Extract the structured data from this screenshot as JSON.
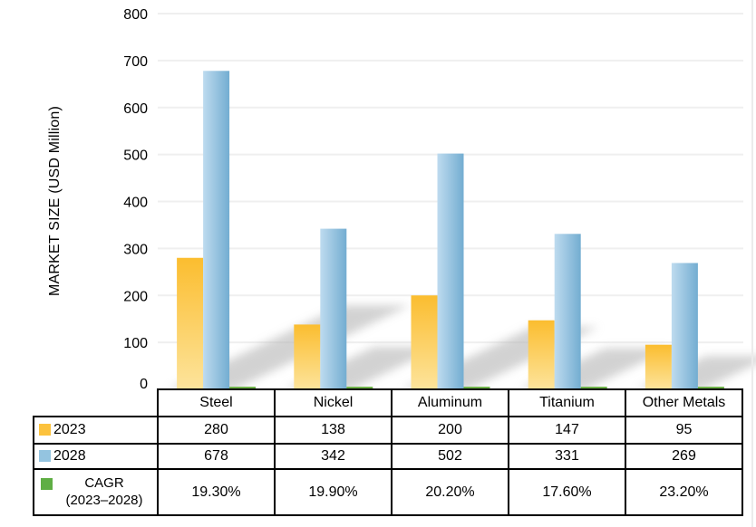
{
  "chart_data": {
    "type": "bar",
    "title": "",
    "xlabel": "",
    "ylabel": "MARKET SIZE (USD Million)",
    "categories": [
      "Steel",
      "Nickel",
      "Aluminum",
      "Titanium",
      "Other Metals"
    ],
    "series": [
      {
        "name": "2023",
        "values": [
          280,
          138,
          200,
          147,
          95
        ]
      },
      {
        "name": "2028",
        "values": [
          678,
          342,
          502,
          331,
          269
        ]
      },
      {
        "name": "CAGR (2023–2028)",
        "values_percent": [
          19.3,
          19.9,
          20.2,
          17.6,
          23.2
        ],
        "display_values": [
          "19.30%",
          "19.90%",
          "20.20%",
          "17.60%",
          "23.20%"
        ]
      }
    ],
    "ylim": [
      0,
      800
    ],
    "yticks": [
      0,
      100,
      200,
      300,
      400,
      500,
      600,
      700,
      800
    ],
    "grid": true,
    "legend_position": "table-left"
  },
  "legend": {
    "items": [
      {
        "label": "2023",
        "line2": "",
        "swatch": "#fcc23d"
      },
      {
        "label": "2028",
        "line2": "",
        "swatch": "#94c4e0"
      },
      {
        "label": "CAGR",
        "line2": "(2023–2028)",
        "swatch": "#5fae44"
      }
    ]
  },
  "colors": {
    "bar2023_top": "#fbbd2f",
    "bar2023_bottom": "#fde49c",
    "bar2028_left": "#bedbef",
    "bar2028_right": "#73add1",
    "bar_cagr": "#6fb34a",
    "gridline": "#efefef",
    "shadow": "#b5b5b5",
    "table_border": "#000000"
  }
}
